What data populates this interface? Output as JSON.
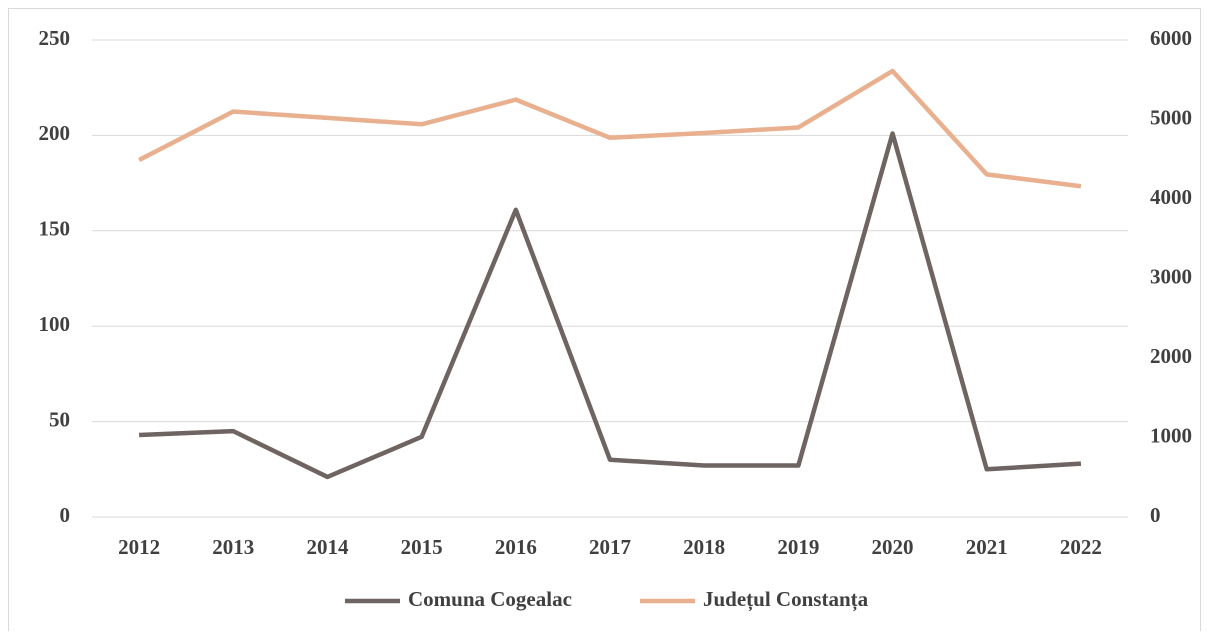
{
  "chart_data": {
    "type": "line",
    "categories": [
      "2012",
      "2013",
      "2014",
      "2015",
      "2016",
      "2017",
      "2018",
      "2019",
      "2020",
      "2021",
      "2022"
    ],
    "series": [
      {
        "name": "Comuna Cogealac",
        "color": "#6e6462",
        "axis": "y",
        "values": [
          43,
          45,
          21,
          42,
          161,
          30,
          27,
          27,
          201,
          25,
          28
        ]
      },
      {
        "name": "Județul Constanța",
        "color": "#e8b08e",
        "axis": "y2",
        "values": [
          4490,
          5100,
          5020,
          4940,
          5250,
          4770,
          4830,
          4900,
          5610,
          4310,
          4160
        ]
      }
    ],
    "ylim": [
      0,
      250
    ],
    "yticks": [
      0,
      50,
      100,
      150,
      200,
      250
    ],
    "y2lim": [
      0,
      6000
    ],
    "y2ticks": [
      0,
      1000,
      2000,
      3000,
      4000,
      5000,
      6000
    ],
    "grid": true,
    "legend": "bottom"
  }
}
